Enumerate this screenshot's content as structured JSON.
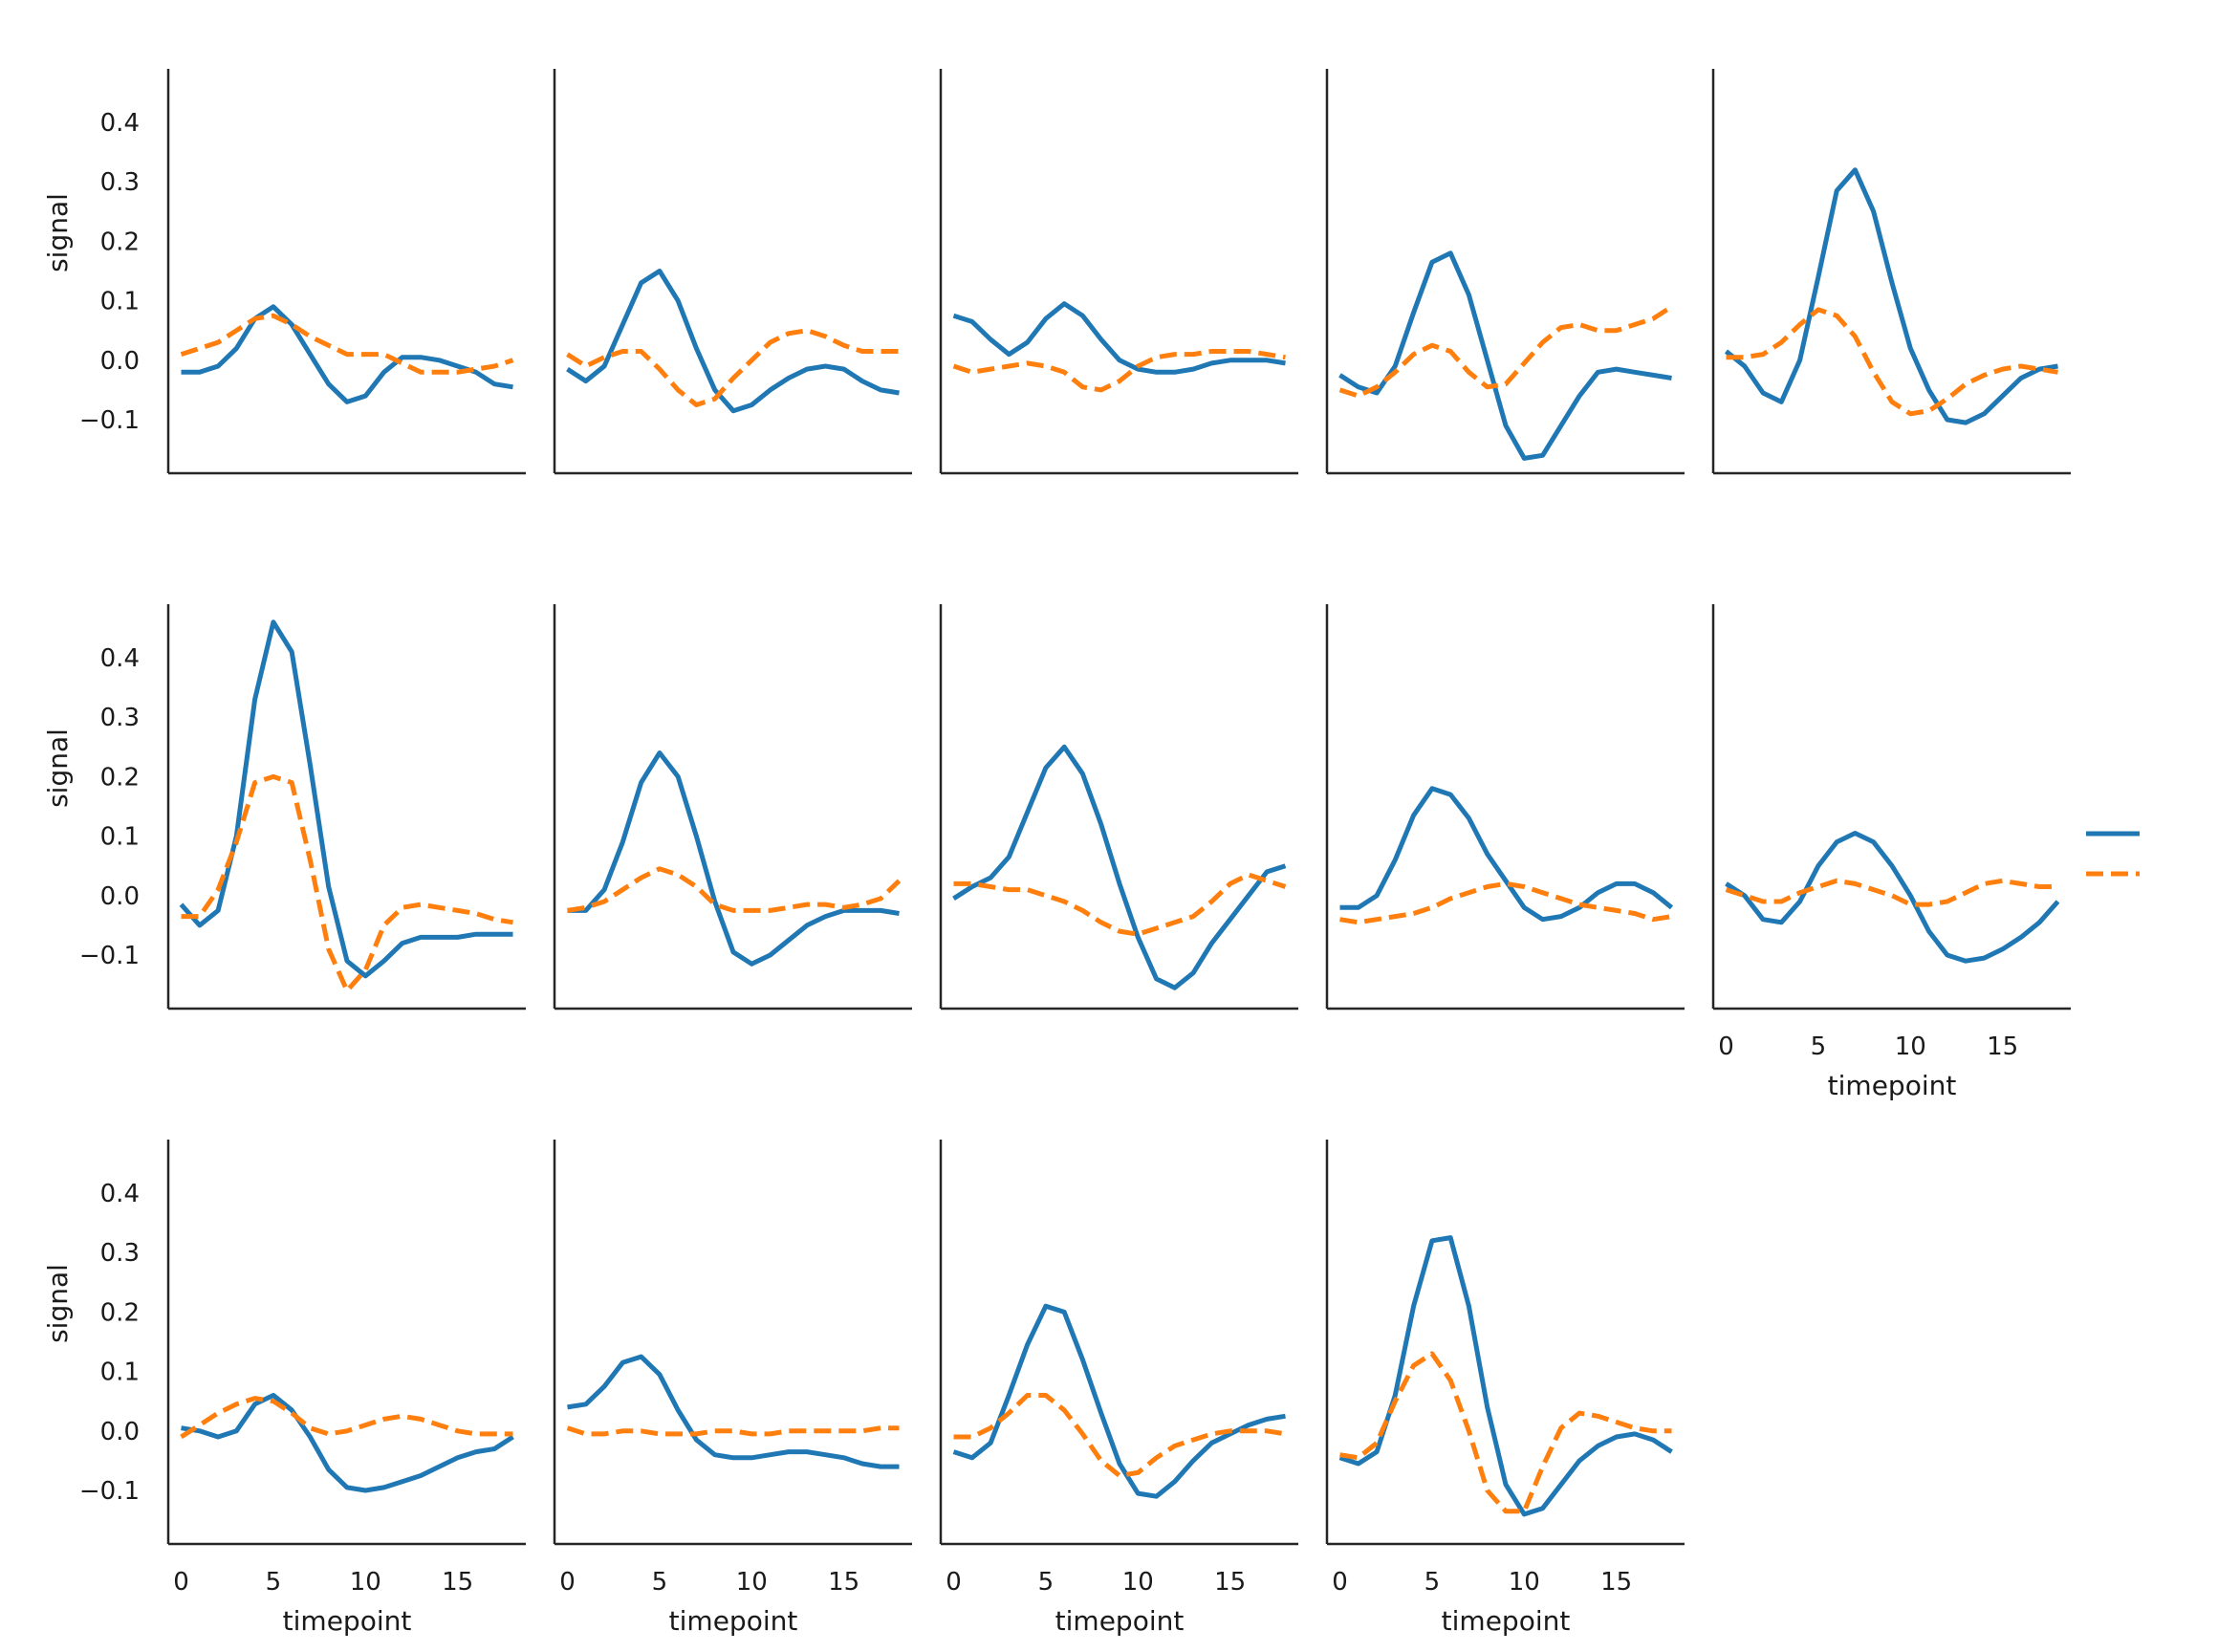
{
  "chart_data": {
    "type": "line",
    "layout": "facet grid, 5 columns, 14 panels, shared axes",
    "title": "",
    "xlabel": "timepoint",
    "ylabel": "signal",
    "xlim": [
      -0.7,
      18.7
    ],
    "ylim": [
      -0.19,
      0.49
    ],
    "xticks": [
      0,
      5,
      10,
      15
    ],
    "xtick_labels": [
      "0",
      "5",
      "10",
      "15"
    ],
    "yticks": [
      -0.1,
      0.0,
      0.1,
      0.2,
      0.3,
      0.4
    ],
    "ytick_labels": [
      "−0.1",
      "0.0",
      "0.1",
      "0.2",
      "0.3",
      "0.4"
    ],
    "grid": false,
    "legend": {
      "placement": "center-right",
      "entries": [
        {
          "label": "",
          "color": "#1f77b4",
          "dash": "solid"
        },
        {
          "label": "",
          "color": "#ff7f0e",
          "dash": "dashed"
        }
      ]
    },
    "colors": {
      "series_1": "#1f77b4",
      "series_2": "#ff7f0e",
      "axis": "#262626"
    },
    "x": [
      0,
      1,
      2,
      3,
      4,
      5,
      6,
      7,
      8,
      9,
      10,
      11,
      12,
      13,
      14,
      15,
      16,
      17,
      18
    ],
    "panels": [
      {
        "series": [
          {
            "values": [
              -0.02,
              -0.02,
              -0.01,
              0.02,
              0.07,
              0.09,
              0.06,
              0.01,
              -0.04,
              -0.07,
              -0.06,
              -0.02,
              0.005,
              0.005,
              0.0,
              -0.01,
              -0.02,
              -0.04,
              -0.045
            ],
            "style": "solid"
          },
          {
            "values": [
              0.01,
              0.02,
              0.03,
              0.05,
              0.07,
              0.075,
              0.06,
              0.04,
              0.025,
              0.01,
              0.01,
              0.01,
              -0.005,
              -0.02,
              -0.02,
              -0.02,
              -0.015,
              -0.01,
              0.0
            ],
            "style": "dashed"
          }
        ]
      },
      {
        "series": [
          {
            "values": [
              -0.015,
              -0.035,
              -0.01,
              0.06,
              0.13,
              0.15,
              0.1,
              0.02,
              -0.05,
              -0.085,
              -0.075,
              -0.05,
              -0.03,
              -0.015,
              -0.01,
              -0.015,
              -0.035,
              -0.05,
              -0.055
            ],
            "style": "solid"
          },
          {
            "values": [
              0.01,
              -0.01,
              0.005,
              0.015,
              0.015,
              -0.015,
              -0.05,
              -0.075,
              -0.065,
              -0.03,
              0.0,
              0.03,
              0.045,
              0.05,
              0.04,
              0.025,
              0.015,
              0.015,
              0.015
            ],
            "style": "dashed"
          }
        ]
      },
      {
        "series": [
          {
            "values": [
              0.075,
              0.065,
              0.035,
              0.01,
              0.03,
              0.07,
              0.095,
              0.075,
              0.035,
              0.0,
              -0.015,
              -0.02,
              -0.02,
              -0.015,
              -0.005,
              0.0,
              0.0,
              0.0,
              -0.005
            ],
            "style": "solid"
          },
          {
            "values": [
              -0.01,
              -0.02,
              -0.015,
              -0.01,
              -0.005,
              -0.01,
              -0.02,
              -0.045,
              -0.05,
              -0.035,
              -0.01,
              0.005,
              0.01,
              0.01,
              0.015,
              0.015,
              0.015,
              0.01,
              0.005
            ],
            "style": "dashed"
          }
        ]
      },
      {
        "series": [
          {
            "values": [
              -0.025,
              -0.045,
              -0.055,
              -0.01,
              0.08,
              0.165,
              0.18,
              0.11,
              0.0,
              -0.11,
              -0.165,
              -0.16,
              -0.11,
              -0.06,
              -0.02,
              -0.015,
              -0.02,
              -0.025,
              -0.03
            ],
            "style": "solid"
          },
          {
            "values": [
              -0.05,
              -0.06,
              -0.045,
              -0.02,
              0.01,
              0.025,
              0.015,
              -0.02,
              -0.045,
              -0.04,
              -0.005,
              0.03,
              0.055,
              0.06,
              0.05,
              0.05,
              0.06,
              0.07,
              0.09
            ],
            "style": "dashed"
          }
        ]
      },
      {
        "series": [
          {
            "values": [
              0.015,
              -0.01,
              -0.055,
              -0.07,
              0.0,
              0.14,
              0.285,
              0.32,
              0.25,
              0.13,
              0.02,
              -0.05,
              -0.1,
              -0.105,
              -0.09,
              -0.06,
              -0.03,
              -0.015,
              -0.01
            ],
            "style": "solid"
          },
          {
            "values": [
              0.005,
              0.005,
              0.01,
              0.03,
              0.06,
              0.085,
              0.075,
              0.04,
              -0.02,
              -0.07,
              -0.09,
              -0.085,
              -0.065,
              -0.04,
              -0.025,
              -0.015,
              -0.01,
              -0.015,
              -0.02
            ],
            "style": "dashed"
          }
        ]
      },
      {
        "series": [
          {
            "values": [
              -0.015,
              -0.05,
              -0.025,
              0.1,
              0.33,
              0.46,
              0.41,
              0.22,
              0.015,
              -0.11,
              -0.135,
              -0.11,
              -0.08,
              -0.07,
              -0.07,
              -0.07,
              -0.065,
              -0.065,
              -0.065
            ],
            "style": "solid"
          },
          {
            "values": [
              -0.035,
              -0.035,
              0.01,
              0.09,
              0.19,
              0.2,
              0.19,
              0.06,
              -0.09,
              -0.16,
              -0.125,
              -0.05,
              -0.02,
              -0.015,
              -0.02,
              -0.025,
              -0.03,
              -0.04,
              -0.045
            ],
            "style": "dashed"
          }
        ]
      },
      {
        "series": [
          {
            "values": [
              -0.025,
              -0.025,
              0.01,
              0.09,
              0.19,
              0.24,
              0.2,
              0.1,
              -0.01,
              -0.095,
              -0.115,
              -0.1,
              -0.075,
              -0.05,
              -0.035,
              -0.025,
              -0.025,
              -0.025,
              -0.03
            ],
            "style": "solid"
          },
          {
            "values": [
              -0.025,
              -0.02,
              -0.01,
              0.01,
              0.03,
              0.045,
              0.035,
              0.015,
              -0.015,
              -0.025,
              -0.025,
              -0.025,
              -0.02,
              -0.015,
              -0.015,
              -0.02,
              -0.015,
              -0.005,
              0.025
            ],
            "style": "dashed"
          }
        ]
      },
      {
        "series": [
          {
            "values": [
              -0.005,
              0.015,
              0.03,
              0.065,
              0.14,
              0.215,
              0.25,
              0.205,
              0.12,
              0.02,
              -0.07,
              -0.14,
              -0.155,
              -0.13,
              -0.08,
              -0.04,
              0.0,
              0.04,
              0.05
            ],
            "style": "solid"
          },
          {
            "values": [
              0.02,
              0.02,
              0.015,
              0.01,
              0.01,
              0.0,
              -0.01,
              -0.025,
              -0.045,
              -0.06,
              -0.065,
              -0.055,
              -0.045,
              -0.035,
              -0.01,
              0.02,
              0.035,
              0.025,
              0.015
            ],
            "style": "dashed"
          }
        ]
      },
      {
        "series": [
          {
            "values": [
              -0.02,
              -0.02,
              0.0,
              0.06,
              0.135,
              0.18,
              0.17,
              0.13,
              0.07,
              0.025,
              -0.02,
              -0.04,
              -0.035,
              -0.02,
              0.005,
              0.02,
              0.02,
              0.005,
              -0.02
            ],
            "style": "solid"
          },
          {
            "values": [
              -0.04,
              -0.045,
              -0.04,
              -0.035,
              -0.03,
              -0.02,
              -0.005,
              0.005,
              0.015,
              0.02,
              0.015,
              0.005,
              -0.005,
              -0.015,
              -0.02,
              -0.025,
              -0.03,
              -0.04,
              -0.035
            ],
            "style": "dashed"
          }
        ]
      },
      {
        "series": [
          {
            "values": [
              0.02,
              0.0,
              -0.04,
              -0.045,
              -0.01,
              0.05,
              0.09,
              0.105,
              0.09,
              0.05,
              0.0,
              -0.06,
              -0.1,
              -0.11,
              -0.105,
              -0.09,
              -0.07,
              -0.045,
              -0.01
            ],
            "style": "solid"
          },
          {
            "values": [
              0.01,
              0.0,
              -0.01,
              -0.01,
              0.005,
              0.015,
              0.025,
              0.02,
              0.01,
              0.0,
              -0.015,
              -0.015,
              -0.01,
              0.005,
              0.02,
              0.025,
              0.02,
              0.015,
              0.015
            ],
            "style": "dashed"
          }
        ]
      },
      {
        "series": [
          {
            "values": [
              0.005,
              0.0,
              -0.01,
              0.0,
              0.045,
              0.06,
              0.035,
              -0.01,
              -0.065,
              -0.095,
              -0.1,
              -0.095,
              -0.085,
              -0.075,
              -0.06,
              -0.045,
              -0.035,
              -0.03,
              -0.01
            ],
            "style": "solid"
          },
          {
            "values": [
              -0.01,
              0.01,
              0.03,
              0.045,
              0.055,
              0.05,
              0.03,
              0.005,
              -0.005,
              0.0,
              0.01,
              0.02,
              0.025,
              0.02,
              0.01,
              0.0,
              -0.005,
              -0.005,
              -0.005
            ],
            "style": "dashed"
          }
        ]
      },
      {
        "series": [
          {
            "values": [
              0.04,
              0.045,
              0.075,
              0.115,
              0.125,
              0.095,
              0.035,
              -0.015,
              -0.04,
              -0.045,
              -0.045,
              -0.04,
              -0.035,
              -0.035,
              -0.04,
              -0.045,
              -0.055,
              -0.06,
              -0.06
            ],
            "style": "solid"
          },
          {
            "values": [
              0.005,
              -0.005,
              -0.005,
              0.0,
              0.0,
              -0.005,
              -0.005,
              -0.005,
              0.0,
              0.0,
              -0.005,
              -0.005,
              0.0,
              0.0,
              0.0,
              0.0,
              0.0,
              0.005,
              0.005
            ],
            "style": "dashed"
          }
        ]
      },
      {
        "series": [
          {
            "values": [
              -0.035,
              -0.045,
              -0.02,
              0.06,
              0.145,
              0.21,
              0.2,
              0.12,
              0.03,
              -0.055,
              -0.105,
              -0.11,
              -0.085,
              -0.05,
              -0.02,
              -0.005,
              0.01,
              0.02,
              0.025
            ],
            "style": "solid"
          },
          {
            "values": [
              -0.01,
              -0.01,
              0.005,
              0.03,
              0.06,
              0.06,
              0.035,
              -0.005,
              -0.05,
              -0.075,
              -0.07,
              -0.045,
              -0.025,
              -0.015,
              -0.005,
              0.0,
              0.0,
              0.0,
              -0.005
            ],
            "style": "dashed"
          }
        ]
      },
      {
        "series": [
          {
            "values": [
              -0.045,
              -0.055,
              -0.035,
              0.06,
              0.21,
              0.32,
              0.325,
              0.21,
              0.04,
              -0.09,
              -0.14,
              -0.13,
              -0.09,
              -0.05,
              -0.025,
              -0.01,
              -0.005,
              -0.015,
              -0.035
            ],
            "style": "solid"
          },
          {
            "values": [
              -0.04,
              -0.045,
              -0.02,
              0.05,
              0.11,
              0.13,
              0.085,
              0.0,
              -0.1,
              -0.135,
              -0.135,
              -0.06,
              0.005,
              0.03,
              0.025,
              0.015,
              0.005,
              0.0,
              0.0
            ],
            "style": "dashed"
          }
        ]
      }
    ]
  }
}
